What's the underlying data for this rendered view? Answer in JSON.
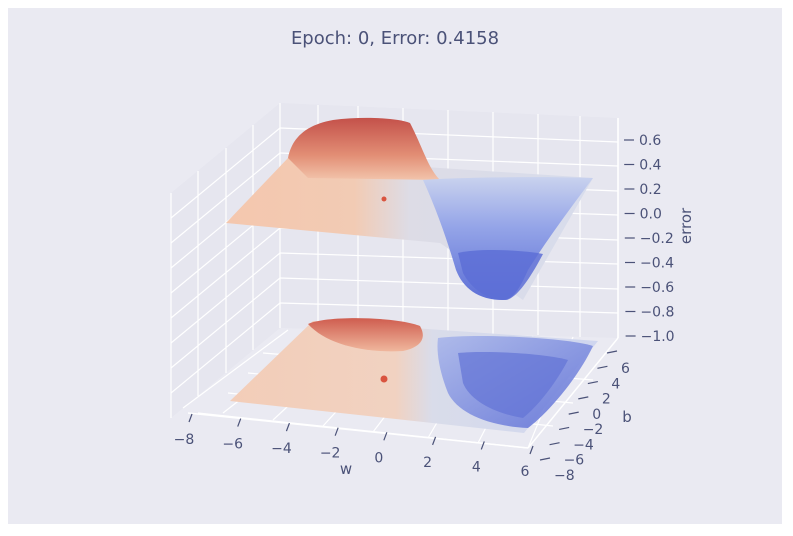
{
  "chart_data": {
    "type": "surface3d",
    "title": "Epoch:  0, Error: 0.4158",
    "xlabel": "w",
    "ylabel": "b",
    "zlabel": "error",
    "xlim": [
      -8,
      6
    ],
    "ylim": [
      -8,
      6
    ],
    "zlim": [
      -1.0,
      0.6
    ],
    "x_ticks": [
      "−8",
      "−6",
      "−4",
      "−2",
      "0",
      "2",
      "4",
      "6"
    ],
    "y_ticks": [
      "−8",
      "−6",
      "−4",
      "−2",
      "0",
      "2",
      "4",
      "6"
    ],
    "z_ticks": [
      "0.6",
      "0.4",
      "0.2",
      "0.0",
      "−0.2",
      "−0.4",
      "−0.6",
      "−0.8",
      "−1.0"
    ],
    "colormap": "coolwarm",
    "grid": true,
    "current_point": {
      "w": 0,
      "b": 0,
      "error": 0.4158
    },
    "colors": {
      "background": "#eaeaf2",
      "grid": "#ffffff",
      "text": "#4b5278",
      "warm": "#d6604d",
      "cool": "#6a7ee0"
    }
  }
}
